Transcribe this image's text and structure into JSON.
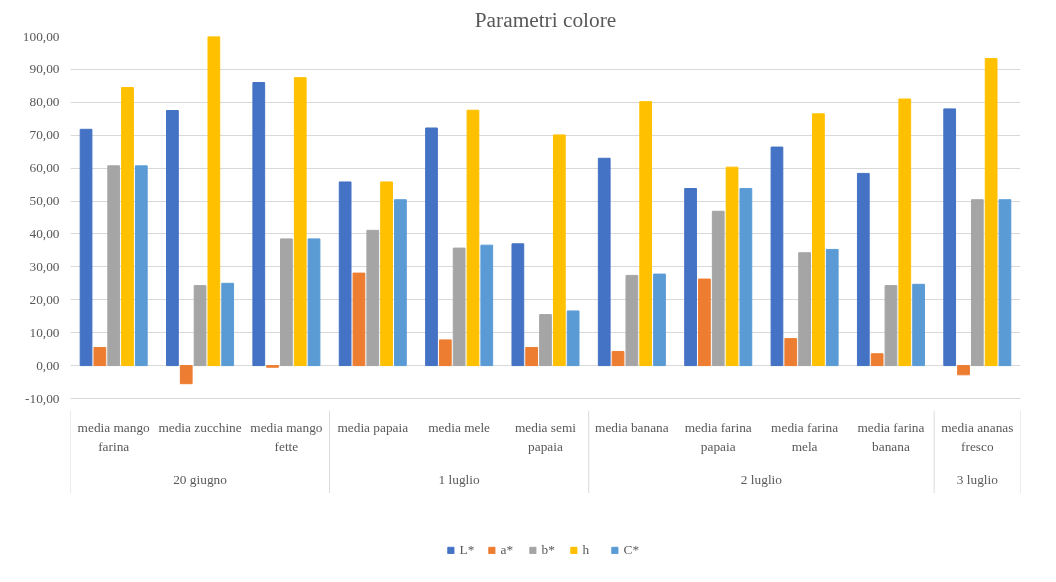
{
  "chart_data": {
    "type": "bar",
    "title": "Parametri colore",
    "categories": [
      [
        "20 giugno",
        "media mango farina"
      ],
      [
        null,
        "media zucchine"
      ],
      [
        null,
        "media mango fette"
      ],
      [
        "1 luglio",
        "media papaia"
      ],
      [
        null,
        "media mele"
      ],
      [
        null,
        "media semi papaia"
      ],
      [
        "2 luglio",
        "media banana"
      ],
      [
        null,
        "media farina papaia"
      ],
      [
        null,
        "media farina mela"
      ],
      [
        null,
        "media farina banana"
      ],
      [
        "3 luglio",
        "media ananas fresco"
      ]
    ],
    "series": [
      {
        "name": "L*",
        "color": "#4472c4",
        "values": [
          71.8,
          77.5,
          86.0,
          55.8,
          72.2,
          37.0,
          63.0,
          53.8,
          66.4,
          58.4,
          78.0
        ]
      },
      {
        "name": "a*",
        "color": "#ed7d31",
        "values": [
          5.5,
          -5.5,
          -0.5,
          28.1,
          7.8,
          5.5,
          4.3,
          26.3,
          8.2,
          3.6,
          -2.8
        ]
      },
      {
        "name": "b*",
        "color": "#a5a5a5",
        "values": [
          60.7,
          24.3,
          38.5,
          41.1,
          35.7,
          15.5,
          27.4,
          46.9,
          34.3,
          24.3,
          50.4
        ]
      },
      {
        "name": "h",
        "color": "#ffc000",
        "values": [
          84.5,
          100.0,
          87.5,
          55.8,
          77.6,
          70.1,
          80.2,
          60.3,
          76.5,
          81.0,
          93.3
        ]
      },
      {
        "name": "C*",
        "color": "#5b9bd5",
        "values": [
          60.7,
          25.0,
          38.5,
          50.4,
          36.6,
          16.6,
          27.8,
          53.8,
          35.3,
          24.7,
          50.4
        ]
      }
    ],
    "ylim": [
      -10,
      100
    ],
    "yticks": [
      {
        "value": -10,
        "label": "-10,00"
      },
      {
        "value": 0,
        "label": "0,00"
      },
      {
        "value": 10,
        "label": "10,00"
      },
      {
        "value": 20,
        "label": "20,00"
      },
      {
        "value": 30,
        "label": "30,00"
      },
      {
        "value": 40,
        "label": "40,00"
      },
      {
        "value": 50,
        "label": "50,00"
      },
      {
        "value": 60,
        "label": "60,00"
      },
      {
        "value": 70,
        "label": "70,00"
      },
      {
        "value": 80,
        "label": "80,00"
      },
      {
        "value": 90,
        "label": "90,00"
      },
      {
        "value": 100,
        "label": "100,00"
      }
    ],
    "grid": "y",
    "legend": "bottom"
  }
}
